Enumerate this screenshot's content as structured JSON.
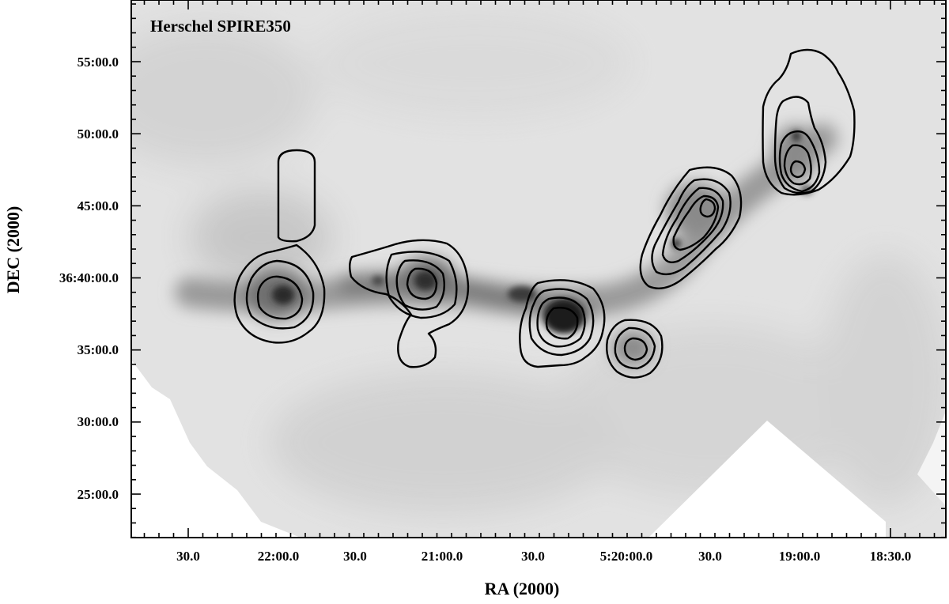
{
  "figure": {
    "title": "Herschel SPIRE350",
    "colormap": "inverted-grayscale",
    "contour_color": "#000000",
    "x_axis": {
      "label": "RA (2000)",
      "tick_labels": [
        "30.0",
        "22:00.0",
        "30.0",
        "21:00.0",
        "30.0",
        "5:20:00.0",
        "30.0",
        "19:00.0",
        "18:30.0"
      ]
    },
    "y_axis": {
      "label": "DEC (2000)",
      "tick_labels": [
        "55:00.0",
        "50:00.0",
        "45:00.0",
        "36:40:00.0",
        "35:00.0",
        "30:00.0",
        "25:00.0"
      ]
    }
  }
}
